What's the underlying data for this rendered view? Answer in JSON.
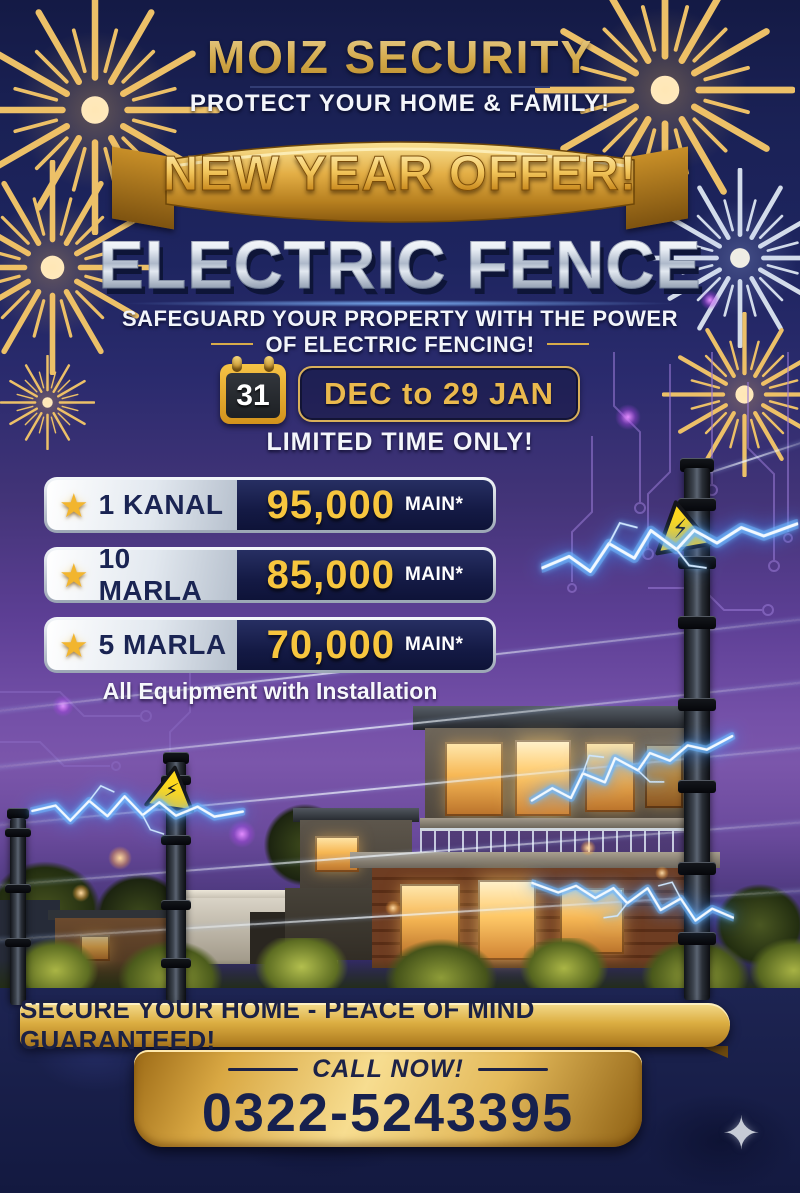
{
  "poster": {
    "brand": "MOIZ SECURITY",
    "tagline": "PROTECT YOUR HOME & FAMILY!",
    "ribbon": "NEW YEAR OFFER!",
    "headline": "ELECTRIC FENCE",
    "subheadline_line1": "SAFEGUARD YOUR PROPERTY WITH THE POWER",
    "subheadline_line2": "OF ELECTRIC FENCING!",
    "calendar_day": "31",
    "date_range": "DEC to 29 JAN",
    "urgency": "LIMITED TIME ONLY!",
    "pricing": {
      "rows": [
        {
          "label": "1 KANAL",
          "price": "95,000",
          "suffix": "MAIN*"
        },
        {
          "label": "10 MARLA",
          "price": "85,000",
          "suffix": "MAIN*"
        },
        {
          "label": "5 MARLA",
          "price": "70,000",
          "suffix": "MAIN*"
        }
      ],
      "note": "All Equipment with Installation"
    },
    "footer_banner": "SECURE YOUR HOME - PEACE OF MIND GUARANTEED!",
    "call_label": "CALL NOW!",
    "phone": "0322-5243395"
  },
  "icons": {
    "star": "★",
    "high_voltage": "⚡",
    "sparkle": "✦"
  },
  "colors": {
    "gold": "#e3b04b",
    "price_gold": "#f7c63e",
    "navy": "#1b2256",
    "navy_text": "#1c2248",
    "purple": "#6a4aa5",
    "silver": "#d7dde8",
    "lightning_blue": "#57b2ff",
    "warning_yellow": "#ffd91c"
  }
}
